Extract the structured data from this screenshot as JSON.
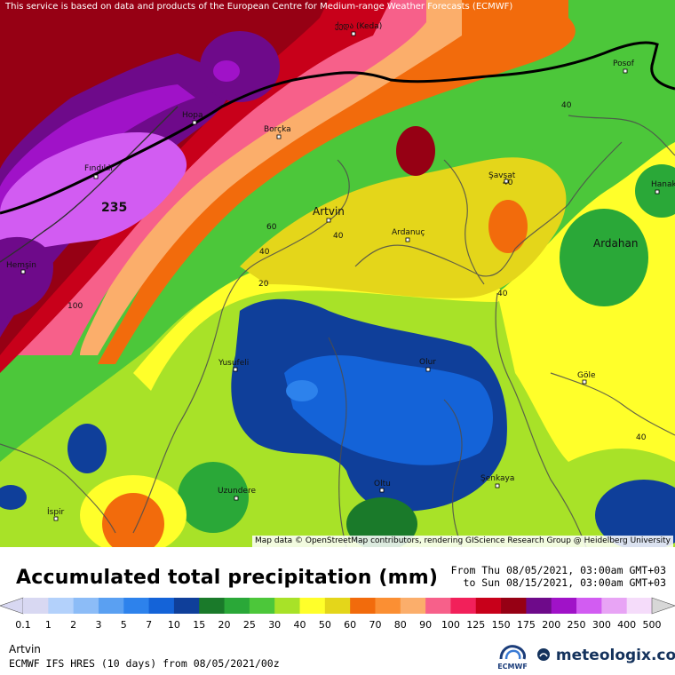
{
  "header": {
    "notice": "This service is based on data and products of the European Centre for Medium-range Weather Forecasts (ECMWF)"
  },
  "map": {
    "attribution": "Map data © OpenStreetMap contributors, rendering GIScience Research Group @ Heidelberg University",
    "places": {
      "keda": "ქედა (Keda)",
      "posof": "Posof",
      "hopa": "Hopa",
      "borcka": "Borçka",
      "findikli": "Fındıklı",
      "savsat": "Şavşat",
      "hanak": "Hanak",
      "artvin": "Artvin",
      "ardanuc": "Ardanuç",
      "ardahan": "Ardahan",
      "hemsin": "Hemşin",
      "yusufeli": "Yusufeli",
      "olur": "Olur",
      "gole": "Göle",
      "uzundere": "Uzundere",
      "oltu": "Oltu",
      "senkaya": "Şenkaya",
      "ispir": "İspir"
    },
    "max_label": "235",
    "isolines": {
      "l40a": "40",
      "l40b": "40",
      "l40c": "40",
      "l40d": "40",
      "l40e": "40",
      "l40f": "40",
      "l60": "60",
      "l20": "20",
      "l100": "100"
    }
  },
  "legend": {
    "title": "Accumulated total precipitation (mm)",
    "period_from": "From Thu 08/05/2021, 03:00am GMT+03",
    "period_to": "to Sun 08/15/2021, 03:00am GMT+03",
    "scale": [
      {
        "label": "0.1",
        "color": "#d8d8f2"
      },
      {
        "label": "1",
        "color": "#b3d1fb"
      },
      {
        "label": "2",
        "color": "#8cbcf7"
      },
      {
        "label": "3",
        "color": "#5aa0f2"
      },
      {
        "label": "5",
        "color": "#2d82ec"
      },
      {
        "label": "7",
        "color": "#1463d8"
      },
      {
        "label": "10",
        "color": "#0f3f9a"
      },
      {
        "label": "15",
        "color": "#1a7a2a"
      },
      {
        "label": "20",
        "color": "#2aa838"
      },
      {
        "label": "25",
        "color": "#4cc73a"
      },
      {
        "label": "30",
        "color": "#a8e228"
      },
      {
        "label": "40",
        "color": "#ffff2a"
      },
      {
        "label": "50",
        "color": "#e4d61a"
      },
      {
        "label": "60",
        "color": "#f26b0c"
      },
      {
        "label": "70",
        "color": "#fb8f33"
      },
      {
        "label": "80",
        "color": "#fbae6b"
      },
      {
        "label": "90",
        "color": "#f7608a"
      },
      {
        "label": "100",
        "color": "#f2205a"
      },
      {
        "label": "125",
        "color": "#c8001a"
      },
      {
        "label": "150",
        "color": "#960014"
      },
      {
        "label": "175",
        "color": "#6e0a8a"
      },
      {
        "label": "200",
        "color": "#a012c8"
      },
      {
        "label": "250",
        "color": "#d25cf2"
      },
      {
        "label": "300",
        "color": "#e8a4f5"
      },
      {
        "label": "400",
        "color": "#f5dcfa"
      },
      {
        "label": "500",
        "color": "#d7d7d7"
      }
    ]
  },
  "footer": {
    "location": "Artvin",
    "model_run": "ECMWF IFS HRES (10 days) from 08/05/2021/00z",
    "ecmwf_logo_text": "ECMWF",
    "brand": "meteologix.com"
  }
}
